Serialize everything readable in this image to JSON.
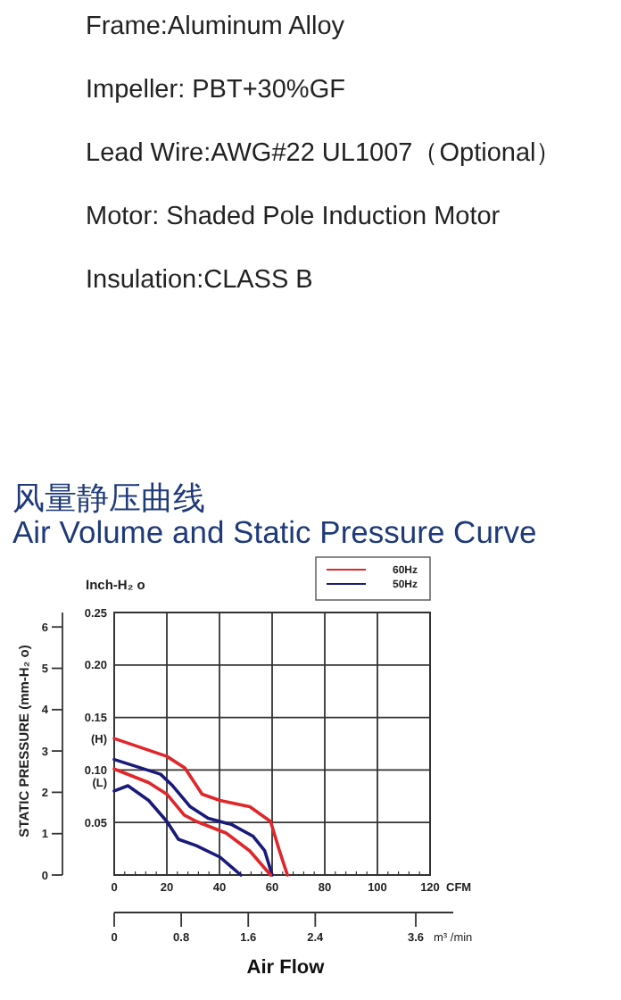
{
  "chart_data": {
    "type": "line",
    "title": "风量静压曲线",
    "subtitle": "Air Volume and Static Pressure Curve",
    "ylabel": "Inch-H₂ o",
    "y2label": "STATIC PRESSURE (mm-H₂ o)",
    "xlabel": "CFM",
    "x2label": "m³ /min",
    "annotations": [
      "Frame:Aluminum Alloy",
      "Impeller: PBT+30%GF",
      "Lead Wire:AWG#22 UL1007（Optional）",
      "Motor: Shaded Pole Induction Motor",
      "Insulation:CLASS B",
      "Air Flow",
      {
        "text": "(H)",
        "x": 0,
        "y": 0.13
      },
      {
        "text": "(L)",
        "x": 0,
        "y": 0.088
      }
    ],
    "xlim": [
      0,
      120
    ],
    "xticks": [
      0,
      20,
      40,
      60,
      80,
      100,
      120
    ],
    "ylim": [
      0,
      0.25
    ],
    "yticks": [
      {
        "value": 0,
        "label": null
      },
      0.05,
      {
        "value": 0.1,
        "label": "0.10"
      },
      0.15,
      {
        "value": 0.2,
        "label": "0.20"
      },
      0.25
    ],
    "y2lim": [
      0,
      6.35
    ],
    "y2ticks": [
      0,
      1,
      2,
      3,
      4,
      5,
      6
    ],
    "x2lim": [
      0,
      3.6
    ],
    "x2ticks": [
      0,
      0.8,
      1.6,
      2.4,
      3.6
    ],
    "grid": true,
    "legend": "top right",
    "series": [
      {
        "name": "60Hz",
        "color": "#e0262a",
        "x": [
          0,
          20,
          26.8,
          33.4,
          40.2,
          51.5,
          59.4,
          62.8,
          65.8
        ],
        "values": [
          0.13,
          0.113,
          0.102,
          0.077,
          0.071,
          0.065,
          0.051,
          0.023,
          0
        ]
      },
      {
        "name": "50Hz",
        "color": "#1a1a7a",
        "x": [
          0,
          17.6,
          22.2,
          28.9,
          35.7,
          44.7,
          52.7,
          57.2,
          60
        ],
        "values": [
          0.11,
          0.096,
          0.085,
          0.065,
          0.054,
          0.048,
          0.037,
          0.023,
          0
        ]
      },
      {
        "color": "#e0262a",
        "x": [
          0,
          13.1,
          20,
          26.6,
          31.2,
          42.5,
          51.5,
          59.4
        ],
        "values": [
          0.101,
          0.088,
          0.077,
          0.057,
          0.051,
          0.04,
          0.023,
          0
        ]
      },
      {
        "color": "#1a1a7a",
        "x": [
          0,
          5.2,
          13.1,
          20,
          24.4,
          31.2,
          40.2,
          48.1
        ],
        "values": [
          0.08,
          0.085,
          0.071,
          0.051,
          0.034,
          0.028,
          0.017,
          0
        ]
      }
    ]
  }
}
